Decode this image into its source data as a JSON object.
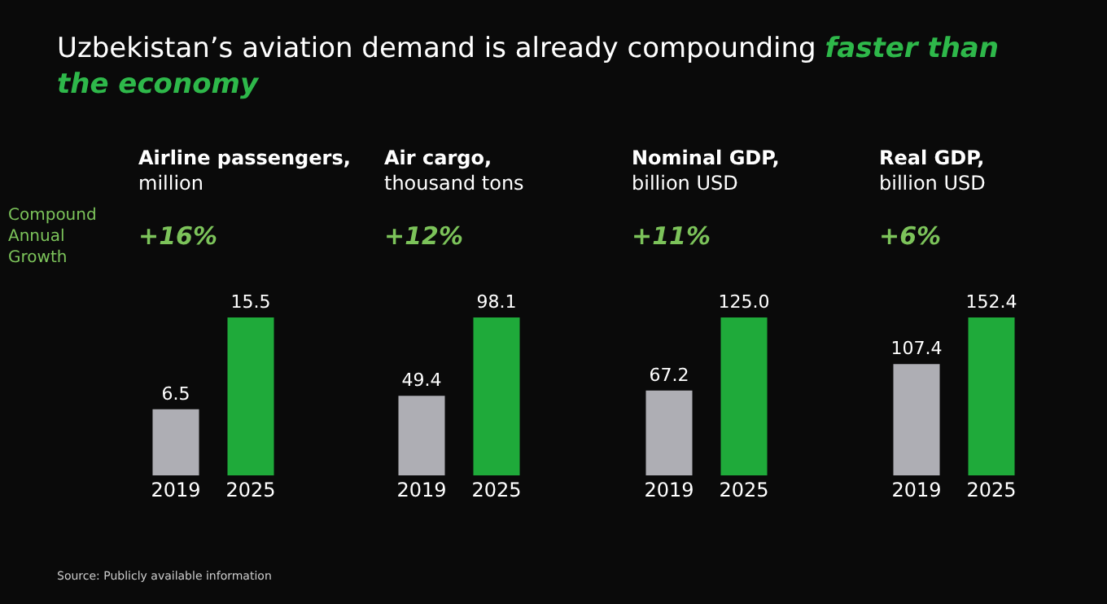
{
  "chart_data": [
    {
      "type": "bar",
      "title": "Airline passengers,",
      "subtitle": "million",
      "categories": [
        "2019",
        "2025"
      ],
      "values": [
        6.5,
        15.5
      ],
      "value_labels": [
        "6.5",
        "15.5"
      ],
      "colors": [
        "#aeaeb4",
        "#1faa3a"
      ],
      "tick_labels": "x",
      "annotations": [
        "+16%",
        "Uzbekistan’s aviation demand is already compounding",
        "faster than the economy",
        "Compound Annual Growth",
        "Source: Publicly available information"
      ]
    },
    {
      "type": "bar",
      "title": "Air cargo,",
      "subtitle": "thousand tons",
      "categories": [
        "2019",
        "2025"
      ],
      "values": [
        49.4,
        98.1
      ],
      "value_labels": [
        "49.4",
        "98.1"
      ],
      "colors": [
        "#aeaeb4",
        "#1faa3a"
      ],
      "tick_labels": "x",
      "annotations": [
        "+12%"
      ]
    },
    {
      "type": "bar",
      "title": "Nominal GDP,",
      "subtitle": "billion USD",
      "categories": [
        "2019",
        "2025"
      ],
      "values": [
        67.2,
        125.0
      ],
      "value_labels": [
        "67.2",
        "125.0"
      ],
      "colors": [
        "#aeaeb4",
        "#1faa3a"
      ],
      "tick_labels": "x",
      "annotations": [
        "+11%"
      ]
    },
    {
      "type": "bar",
      "title": "Real GDP,",
      "subtitle": "billion USD",
      "categories": [
        "2019",
        "2025"
      ],
      "values": [
        107.4,
        152.4
      ],
      "value_labels": [
        "107.4",
        "152.4"
      ],
      "colors": [
        "#aeaeb4",
        "#1faa3a"
      ],
      "tick_labels": "x",
      "annotations": [
        "+6%"
      ]
    }
  ]
}
